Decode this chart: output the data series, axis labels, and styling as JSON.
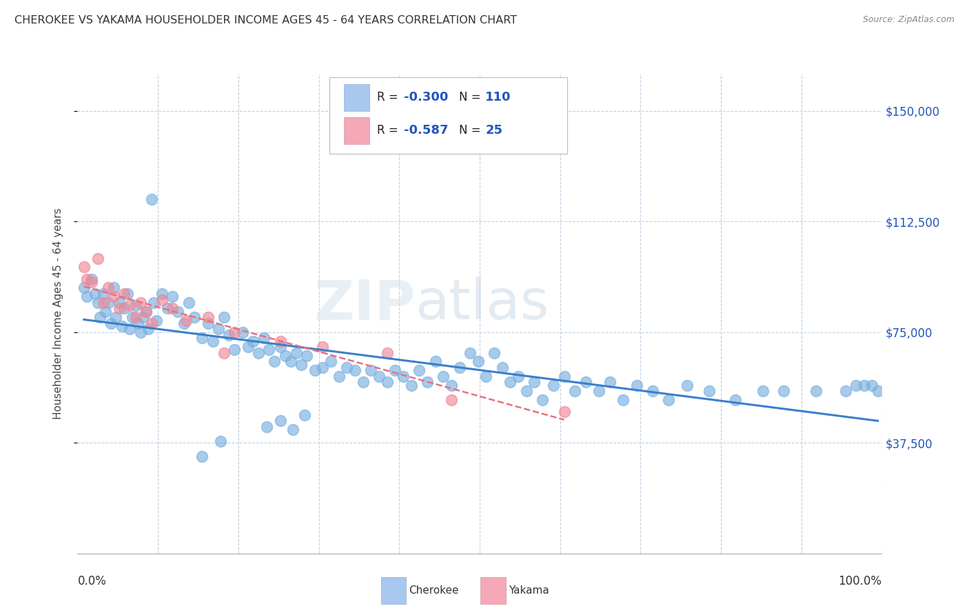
{
  "title": "CHEROKEE VS YAKAMA HOUSEHOLDER INCOME AGES 45 - 64 YEARS CORRELATION CHART",
  "source": "Source: ZipAtlas.com",
  "ylabel": "Householder Income Ages 45 - 64 years",
  "ytick_labels": [
    "$37,500",
    "$75,000",
    "$112,500",
    "$150,000"
  ],
  "ytick_values": [
    37500,
    75000,
    112500,
    150000
  ],
  "ylim": [
    0,
    162500
  ],
  "xlim": [
    0.0,
    1.0
  ],
  "watermark_zip": "ZIP",
  "watermark_atlas": "atlas",
  "cherokee_color": "#7ab0e0",
  "yakama_color": "#f08898",
  "cherokee_line_color": "#3a7fcc",
  "yakama_line_color": "#e87080",
  "background_color": "#ffffff",
  "grid_color": "#c0d0e0",
  "legend_box_color": "#a8c8f0",
  "legend_box_color2": "#f4a8b8",
  "legend_R1": "-0.300",
  "legend_N1": "110",
  "legend_R2": "-0.587",
  "legend_N2": "25",
  "cherokee_x": [
    0.008,
    0.012,
    0.018,
    0.022,
    0.025,
    0.028,
    0.032,
    0.035,
    0.038,
    0.042,
    0.045,
    0.048,
    0.052,
    0.055,
    0.058,
    0.062,
    0.065,
    0.068,
    0.072,
    0.075,
    0.078,
    0.082,
    0.085,
    0.088,
    0.092,
    0.095,
    0.098,
    0.105,
    0.112,
    0.118,
    0.125,
    0.132,
    0.138,
    0.145,
    0.155,
    0.162,
    0.168,
    0.175,
    0.182,
    0.188,
    0.195,
    0.205,
    0.212,
    0.218,
    0.225,
    0.232,
    0.238,
    0.245,
    0.252,
    0.258,
    0.265,
    0.272,
    0.278,
    0.285,
    0.295,
    0.305,
    0.315,
    0.325,
    0.335,
    0.345,
    0.355,
    0.365,
    0.375,
    0.385,
    0.395,
    0.405,
    0.415,
    0.425,
    0.435,
    0.445,
    0.455,
    0.465,
    0.475,
    0.488,
    0.498,
    0.508,
    0.518,
    0.528,
    0.538,
    0.548,
    0.558,
    0.568,
    0.578,
    0.592,
    0.605,
    0.618,
    0.632,
    0.648,
    0.662,
    0.678,
    0.695,
    0.715,
    0.735,
    0.758,
    0.785,
    0.818,
    0.852,
    0.878,
    0.918,
    0.955,
    0.968,
    0.978,
    0.988,
    0.995,
    0.252,
    0.268,
    0.282,
    0.235,
    0.155,
    0.178
  ],
  "cherokee_y": [
    90000,
    87000,
    93000,
    88000,
    85000,
    80000,
    88000,
    82000,
    85000,
    78000,
    90000,
    80000,
    85000,
    77000,
    83000,
    88000,
    76000,
    80000,
    84000,
    78000,
    75000,
    80000,
    82000,
    76000,
    120000,
    85000,
    79000,
    88000,
    83000,
    87000,
    82000,
    78000,
    85000,
    80000,
    73000,
    78000,
    72000,
    76000,
    80000,
    74000,
    69000,
    75000,
    70000,
    72000,
    68000,
    73000,
    69000,
    65000,
    70000,
    67000,
    65000,
    68000,
    64000,
    67000,
    62000,
    63000,
    65000,
    60000,
    63000,
    62000,
    58000,
    62000,
    60000,
    58000,
    62000,
    60000,
    57000,
    62000,
    58000,
    65000,
    60000,
    57000,
    63000,
    68000,
    65000,
    60000,
    68000,
    63000,
    58000,
    60000,
    55000,
    58000,
    52000,
    57000,
    60000,
    55000,
    58000,
    55000,
    58000,
    52000,
    57000,
    55000,
    52000,
    57000,
    55000,
    52000,
    55000,
    55000,
    55000,
    55000,
    57000,
    57000,
    57000,
    55000,
    45000,
    42000,
    47000,
    43000,
    33000,
    38000
  ],
  "yakama_x": [
    0.008,
    0.012,
    0.018,
    0.025,
    0.032,
    0.038,
    0.045,
    0.052,
    0.058,
    0.065,
    0.072,
    0.078,
    0.085,
    0.092,
    0.105,
    0.118,
    0.135,
    0.162,
    0.182,
    0.195,
    0.252,
    0.305,
    0.385,
    0.465,
    0.605
  ],
  "yakama_y": [
    97000,
    93000,
    92000,
    100000,
    85000,
    90000,
    87000,
    83000,
    88000,
    84000,
    80000,
    85000,
    82000,
    78000,
    86000,
    83000,
    79000,
    80000,
    68000,
    75000,
    72000,
    70000,
    68000,
    52000,
    48000
  ]
}
